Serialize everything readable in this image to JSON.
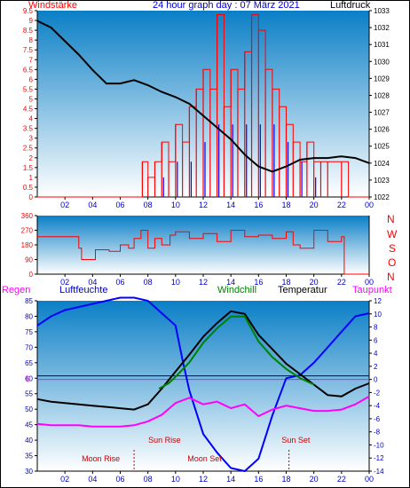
{
  "header": {
    "left_label": "Windstärke",
    "title": "24 hour graph day : 07 März 2021",
    "right_label": "Luftdruck"
  },
  "compass_labels": [
    "N",
    "W",
    "S",
    "O",
    "N"
  ],
  "bottom_header": {
    "regen": "Regen",
    "luftfeuchte": "Luftfeuchte",
    "windchill": "Windchill",
    "temperatur": "Temperatur",
    "taupunkt": "Taupunkt"
  },
  "annotations": {
    "sun_rise": "Sun Rise",
    "sun_set": "Sun Set",
    "moon_rise": "Moon Rise",
    "moon_set": "Moon Set",
    "zero_marker": "0"
  },
  "colors": {
    "wind": "#ff0000",
    "gust_blue": "#0000ff",
    "pressure": "#000000",
    "humidity": "#0000ff",
    "temperature": "#000000",
    "windchill": "#008000",
    "dewpoint": "#ff00ff",
    "rain": "#ff0000",
    "annotation": "#cc0000",
    "axis_blue": "#0000cc",
    "bg_top": "#0a7fc6",
    "bg_bottom": "#ffffff"
  },
  "chart_data": [
    {
      "type": "line",
      "panel": "wind_pressure",
      "x_ticks": [
        "02",
        "04",
        "06",
        "08",
        "10",
        "12",
        "14",
        "16",
        "18",
        "20",
        "22",
        "00"
      ],
      "y_left_ticks": [
        "0",
        "0.5",
        "1",
        "1.5",
        "2",
        "2.5",
        "3",
        "3.5",
        "4",
        "4.5",
        "5",
        "5.5",
        "6",
        "6.5",
        "7",
        "7.5",
        "8",
        "8.5",
        "9",
        "9.5"
      ],
      "y_right_ticks": [
        "1022",
        "1023",
        "1024",
        "1025",
        "1026",
        "1027",
        "1028",
        "1029",
        "1030",
        "1031",
        "1032",
        "1033"
      ],
      "ylim_left": [
        0,
        9.5
      ],
      "ylim_right": [
        1022,
        1033
      ],
      "series": [
        {
          "name": "Luftdruck",
          "axis": "right",
          "x": [
            0,
            1,
            2,
            3,
            4,
            5,
            6,
            7,
            8,
            9,
            10,
            11,
            12,
            13,
            14,
            15,
            16,
            17,
            18,
            19,
            20,
            21,
            22,
            23,
            24
          ],
          "values": [
            1032.4,
            1032.0,
            1031.2,
            1030.4,
            1029.5,
            1028.7,
            1028.7,
            1028.9,
            1028.6,
            1028.2,
            1027.9,
            1027.5,
            1026.8,
            1026.1,
            1025.4,
            1024.5,
            1023.8,
            1023.5,
            1023.8,
            1024.2,
            1024.3,
            1024.3,
            1024.4,
            1024.3,
            1024.0
          ]
        },
        {
          "name": "Windstärke",
          "axis": "left",
          "x": [
            0,
            7.4,
            7.6,
            8,
            8.5,
            9,
            9.5,
            10,
            10.5,
            11,
            11.5,
            12,
            12.5,
            13,
            13.5,
            14,
            14.5,
            15,
            15.5,
            16,
            16.5,
            17,
            17.5,
            18,
            18.5,
            19,
            19.5,
            20,
            20.5,
            21,
            22,
            22.5,
            24
          ],
          "values": [
            0,
            0,
            1.8,
            1.0,
            1.8,
            2.8,
            1.8,
            3.7,
            2.8,
            4.6,
            5.5,
            6.5,
            5.5,
            9.3,
            4.6,
            6.5,
            5.5,
            7.4,
            9.3,
            8.5,
            6.5,
            5.5,
            4.6,
            3.7,
            2.8,
            1.8,
            2.8,
            1.8,
            1.8,
            1.8,
            1.8,
            0,
            0
          ]
        },
        {
          "name": "Böen",
          "axis": "left",
          "x": [
            9,
            10,
            11,
            12,
            13,
            14,
            15,
            16,
            17,
            18,
            19,
            20
          ],
          "values": [
            1.0,
            1.8,
            1.8,
            2.8,
            3.7,
            3.7,
            3.7,
            3.7,
            3.7,
            2.8,
            1.8,
            1.0
          ]
        }
      ]
    },
    {
      "type": "line",
      "panel": "wind_direction",
      "x_ticks": [
        "02",
        "04",
        "06",
        "08",
        "10",
        "12",
        "14",
        "16",
        "18",
        "20",
        "22",
        "00"
      ],
      "y_ticks": [
        "0",
        "90",
        "180",
        "270",
        "360"
      ],
      "ylim": [
        0,
        360
      ],
      "series": [
        {
          "name": "Windrichtung",
          "x": [
            0,
            2,
            3,
            3.2,
            3.6,
            4.2,
            4.6,
            5.2,
            6,
            6.6,
            7,
            7.5,
            8,
            8.5,
            9,
            9.6,
            10,
            11,
            12,
            13,
            14,
            15,
            16,
            17,
            18,
            18.5,
            19,
            20,
            21,
            22,
            22.2,
            23,
            24
          ],
          "values": [
            230,
            230,
            160,
            90,
            90,
            150,
            150,
            140,
            180,
            160,
            220,
            270,
            160,
            220,
            180,
            240,
            260,
            220,
            250,
            200,
            270,
            230,
            240,
            220,
            260,
            180,
            160,
            270,
            200,
            230,
            0,
            0,
            0
          ]
        }
      ]
    },
    {
      "type": "line",
      "panel": "climate",
      "x_ticks": [
        "02",
        "04",
        "06",
        "08",
        "10",
        "12",
        "14",
        "16",
        "18",
        "20",
        "22",
        "00"
      ],
      "y_left_ticks": [
        "30",
        "35",
        "40",
        "45",
        "50",
        "55",
        "60",
        "65",
        "70",
        "75",
        "80",
        "85"
      ],
      "y_right_ticks": [
        "-14",
        "-12",
        "-10",
        "-8",
        "-6",
        "-4",
        "-2",
        "0",
        "2",
        "4",
        "6",
        "8",
        "10",
        "12"
      ],
      "ylim_left": [
        30,
        85
      ],
      "ylim_right": [
        -14,
        12
      ],
      "series": [
        {
          "name": "Luftfeuchte",
          "axis": "left",
          "x": [
            0,
            1,
            2,
            3,
            4,
            5,
            6,
            7,
            8,
            9,
            10,
            10.5,
            11,
            12,
            13,
            14,
            15,
            16,
            17,
            18,
            19,
            20,
            21,
            22,
            23,
            24
          ],
          "values": [
            77,
            80,
            82,
            83,
            84,
            85,
            86,
            86,
            85,
            81,
            77,
            66,
            56,
            42,
            36,
            31,
            30,
            34,
            48,
            60,
            61,
            65,
            70,
            75,
            80,
            81
          ]
        },
        {
          "name": "Temperatur",
          "axis": "right",
          "x": [
            0,
            1,
            2,
            3,
            4,
            5,
            6,
            7,
            8,
            9,
            10,
            11,
            12,
            13,
            14,
            15,
            16,
            17,
            18,
            19,
            20,
            21,
            22,
            23,
            24
          ],
          "values": [
            -3.0,
            -3.4,
            -3.6,
            -3.8,
            -4.0,
            -4.2,
            -4.4,
            -4.6,
            -3.8,
            -1.4,
            1.2,
            3.8,
            6.5,
            8.6,
            10.4,
            10.0,
            6.8,
            4.6,
            2.4,
            0.8,
            -0.8,
            -2.4,
            -2.6,
            -1.4,
            -0.6
          ]
        },
        {
          "name": "Windchill",
          "axis": "right",
          "x": [
            8.8,
            9.5,
            10,
            11,
            12,
            13,
            14,
            15,
            16,
            17,
            18,
            19,
            20
          ],
          "values": [
            -1.4,
            -0.6,
            0.4,
            2.6,
            5.6,
            7.8,
            9.6,
            9.6,
            5.8,
            3.4,
            1.6,
            0.2,
            -0.8
          ]
        },
        {
          "name": "Taupunkt",
          "axis": "right",
          "x": [
            0,
            1,
            2,
            3,
            4,
            5,
            6,
            7,
            8,
            9,
            10,
            11,
            12,
            13,
            14,
            15,
            16,
            17,
            18,
            19,
            20,
            21,
            22,
            23,
            24
          ],
          "values": [
            -6.8,
            -7.0,
            -7.0,
            -7.0,
            -7.2,
            -7.2,
            -7.2,
            -7.0,
            -6.4,
            -5.4,
            -3.6,
            -2.8,
            -3.8,
            -3.4,
            -4.4,
            -3.8,
            -5.6,
            -4.6,
            -4.0,
            -4.4,
            -4.8,
            -4.8,
            -4.6,
            -3.8,
            -2.6
          ]
        },
        {
          "name": "Regen",
          "axis": "right",
          "x": [
            0,
            24
          ],
          "values": [
            0,
            0
          ]
        }
      ]
    }
  ]
}
